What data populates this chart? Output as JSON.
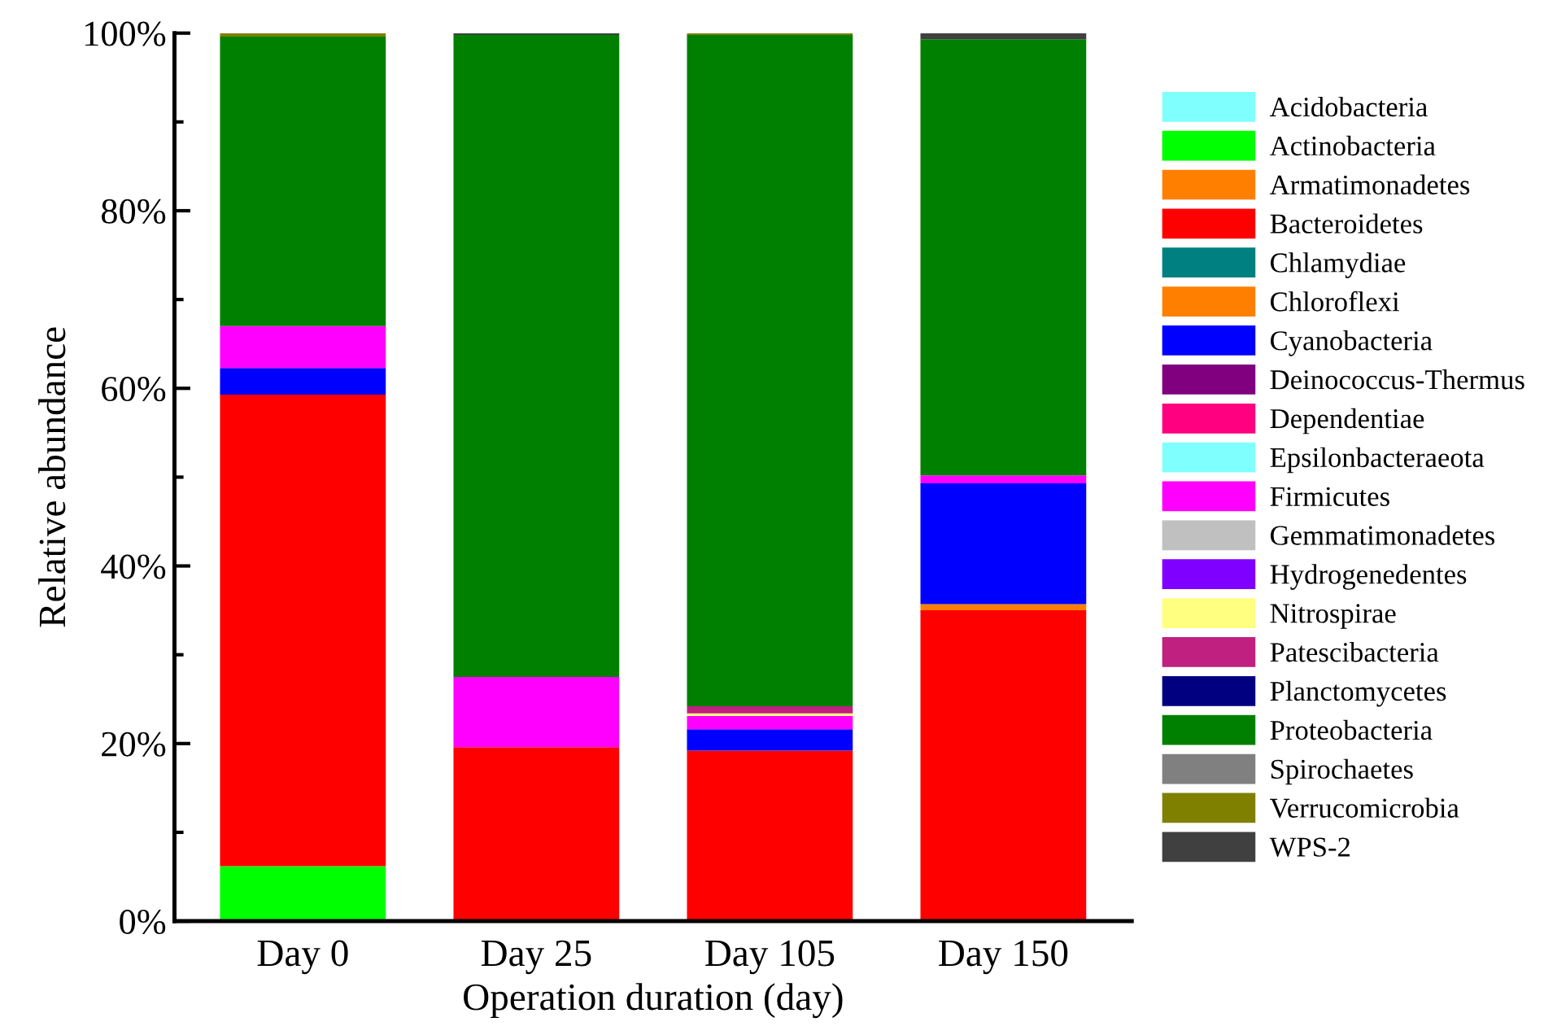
{
  "chart_data": {
    "type": "bar",
    "stacked": true,
    "xlabel": "Operation duration (day)",
    "ylabel": "Relative abundance",
    "categories": [
      "Day 0",
      "Day 25",
      "Day 105",
      "Day 150"
    ],
    "ylim": [
      0,
      100
    ],
    "yticks": [
      {
        "value": 0,
        "label": "0%"
      },
      {
        "value": 10,
        "label": null
      },
      {
        "value": 20,
        "label": "20%"
      },
      {
        "value": 30,
        "label": null
      },
      {
        "value": 40,
        "label": "40%"
      },
      {
        "value": 50,
        "label": null
      },
      {
        "value": 60,
        "label": "60%"
      },
      {
        "value": 70,
        "label": null
      },
      {
        "value": 80,
        "label": "80%"
      },
      {
        "value": 90,
        "label": null
      },
      {
        "value": 100,
        "label": "100%"
      }
    ],
    "legend": "right",
    "grid": false,
    "series": [
      {
        "name": "Acidobacteria",
        "color": "#80ffff",
        "values": [
          0,
          0,
          0,
          0
        ]
      },
      {
        "name": "Actinobacteria",
        "color": "#00ff00",
        "values": [
          6.2,
          0,
          0,
          0
        ]
      },
      {
        "name": "Armatimonadetes",
        "color": "#ff8000",
        "values": [
          0,
          0,
          0,
          0
        ]
      },
      {
        "name": "Bacteroidetes",
        "color": "#ff0000",
        "values": [
          53.1,
          19.6,
          19.2,
          35.0
        ]
      },
      {
        "name": "Chlamydiae",
        "color": "#008080",
        "values": [
          0,
          0,
          0,
          0
        ]
      },
      {
        "name": "Chloroflexi",
        "color": "#ff8000",
        "values": [
          0,
          0,
          0,
          0.7
        ]
      },
      {
        "name": "Cyanobacteria",
        "color": "#0000ff",
        "values": [
          3.0,
          0,
          2.4,
          13.6
        ]
      },
      {
        "name": "Deinococcus-Thermus",
        "color": "#800080",
        "values": [
          0,
          0,
          0,
          0
        ]
      },
      {
        "name": "Dependentiae",
        "color": "#ff0080",
        "values": [
          0,
          0,
          0,
          0
        ]
      },
      {
        "name": "Epsilonbacteraeota",
        "color": "#80ffff",
        "values": [
          0,
          0,
          0,
          0
        ]
      },
      {
        "name": "Firmicutes",
        "color": "#ff00ff",
        "values": [
          4.7,
          7.9,
          1.5,
          0.9
        ]
      },
      {
        "name": "Gemmatimonadetes",
        "color": "#c0c0c0",
        "values": [
          0,
          0,
          0,
          0
        ]
      },
      {
        "name": "Hydrogenedentes",
        "color": "#8000ff",
        "values": [
          0,
          0,
          0,
          0
        ]
      },
      {
        "name": "Nitrospirae",
        "color": "#ffff80",
        "values": [
          0,
          0,
          0.3,
          0
        ]
      },
      {
        "name": "Patescibacteria",
        "color": "#c0207f",
        "values": [
          0,
          0,
          0.8,
          0
        ]
      },
      {
        "name": "Planctomycetes",
        "color": "#000080",
        "values": [
          0,
          0,
          0,
          0
        ]
      },
      {
        "name": "Proteobacteria",
        "color": "#008000",
        "values": [
          32.6,
          72.3,
          75.6,
          49.1
        ]
      },
      {
        "name": "Spirochaetes",
        "color": "#808080",
        "values": [
          0,
          0,
          0,
          0
        ]
      },
      {
        "name": "Verrucomicrobia",
        "color": "#808000",
        "values": [
          0.4,
          0,
          0.2,
          0
        ]
      },
      {
        "name": "WPS-2",
        "color": "#404040",
        "values": [
          0,
          0.2,
          0,
          0.7
        ]
      }
    ]
  }
}
